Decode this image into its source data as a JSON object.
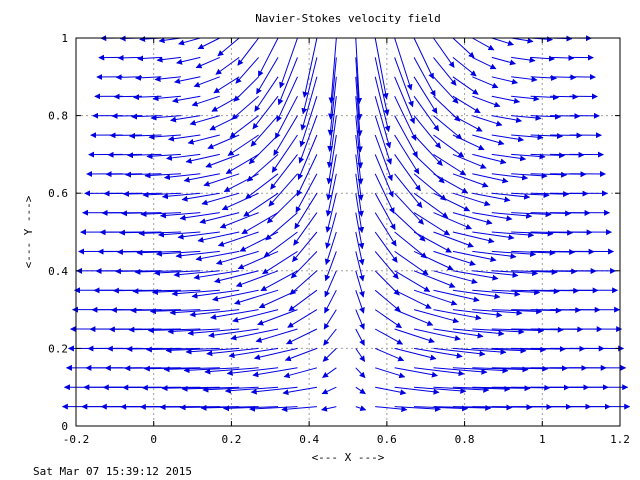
{
  "chart_data": {
    "type": "vector-field",
    "title": "Navier-Stokes velocity field",
    "xlabel": "<--- X --->",
    "ylabel": "<--- Y --->",
    "xlim": [
      -0.2,
      1.2
    ],
    "ylim": [
      0,
      1
    ],
    "xticks": [
      -0.2,
      0,
      0.2,
      0.4,
      0.6,
      0.8,
      1,
      1.2
    ],
    "xtick_labels": [
      "-0.2",
      "0",
      "0.2",
      "0.4",
      "0.6",
      "0.8",
      "1",
      "1.2"
    ],
    "yticks": [
      0,
      0.2,
      0.4,
      0.6,
      0.8,
      1
    ],
    "ytick_labels": [
      "0",
      "0.2",
      "0.4",
      "0.6",
      "0.8",
      "1"
    ],
    "grid": true,
    "vector_color": "#0000e0",
    "grid_x": [
      -0.08,
      -0.03,
      0.02,
      0.07,
      0.12,
      0.17,
      0.22,
      0.27,
      0.32,
      0.37,
      0.42,
      0.47,
      0.52,
      0.57,
      0.62,
      0.67,
      0.72,
      0.77,
      0.82,
      0.87,
      0.92,
      0.97,
      1.02,
      1.07
    ],
    "grid_y": [
      0.05,
      0.1,
      0.15,
      0.2,
      0.25,
      0.3,
      0.35,
      0.4,
      0.45,
      0.5,
      0.55,
      0.6,
      0.65,
      0.7,
      0.75,
      0.8,
      0.85,
      0.9,
      0.95,
      1.0
    ],
    "field": {
      "center_x": 0.5,
      "x_scale": 0.16,
      "y_scale": 0.17
    }
  },
  "footer": {
    "timestamp": "Sat Mar 07 15:39:12 2015"
  }
}
